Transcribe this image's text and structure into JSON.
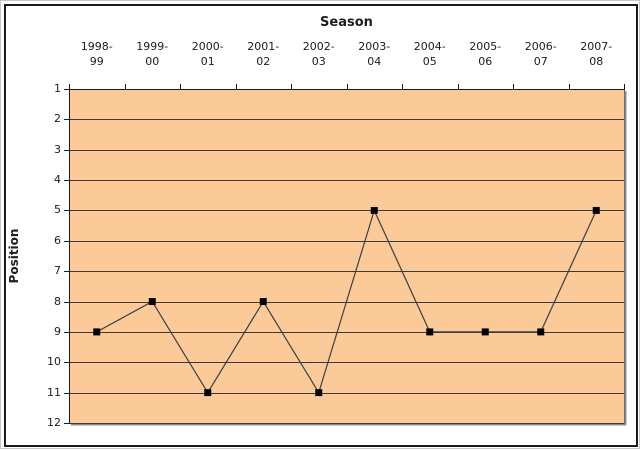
{
  "chart_data": {
    "type": "line",
    "title": "Season",
    "xlabel": "Season",
    "ylabel": "Position",
    "categories": [
      "1998-99",
      "1999-00",
      "2000-01",
      "2001-02",
      "2002-03",
      "2003-04",
      "2004-05",
      "2005-06",
      "2006-07",
      "2007-08"
    ],
    "values": [
      9,
      8,
      11,
      8,
      11,
      5,
      9,
      9,
      9,
      5
    ],
    "y_ticks": [
      1,
      2,
      3,
      4,
      5,
      6,
      7,
      8,
      9,
      10,
      11,
      12
    ],
    "ylim": [
      1,
      12
    ],
    "y_reversed": true,
    "grid": "horizontal",
    "legend": "none",
    "colors": {
      "plot_background": "#FCC998",
      "gridline": "#3a3a3a",
      "axis_line": "#1a1a1a",
      "plot_border": "#6e6e6e",
      "plot_shadow": "#8c8c8c",
      "series_line": "#3f3f3f",
      "marker_fill": "#000000",
      "text": "#1c1c22"
    }
  }
}
